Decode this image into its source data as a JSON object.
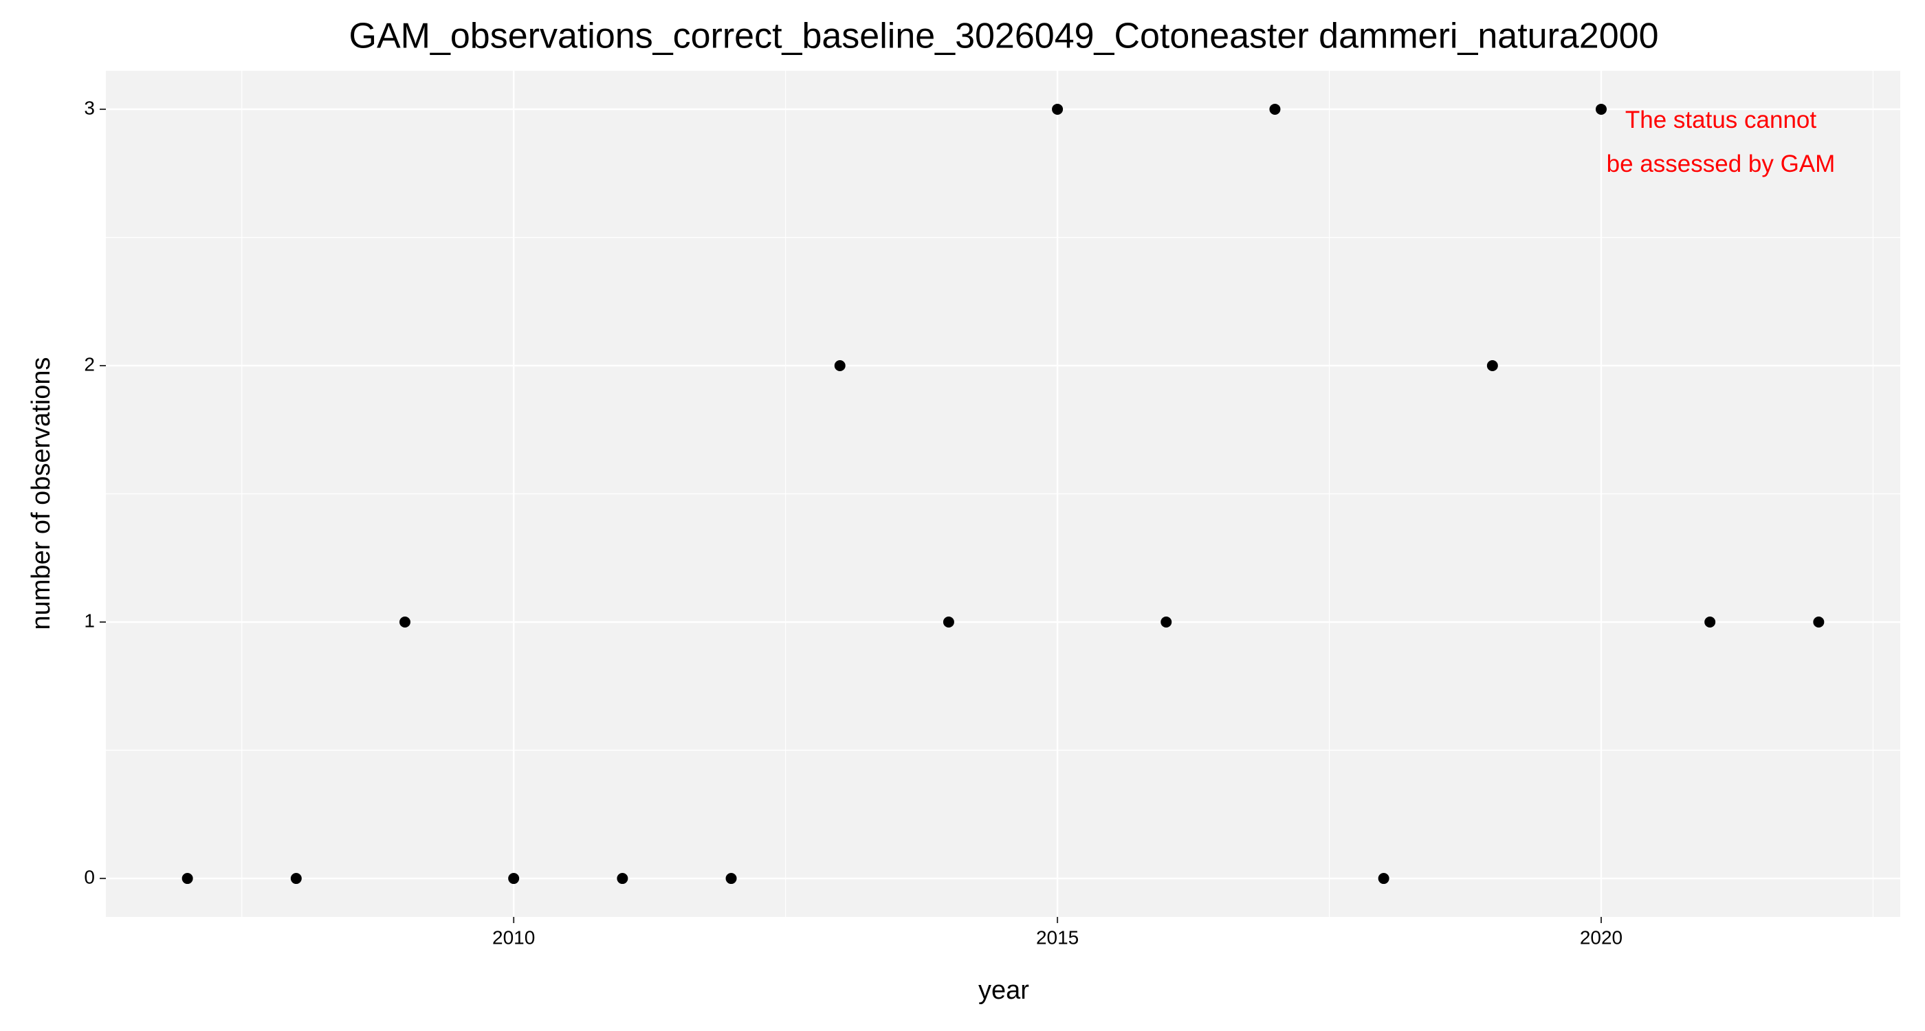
{
  "chart_data": {
    "type": "scatter",
    "title": "GAM_observations_correct_baseline_3026049_Cotoneaster dammeri_natura2000",
    "x_label": "year",
    "y_label": "number of observations",
    "x": [
      2007,
      2008,
      2009,
      2010,
      2011,
      2012,
      2013,
      2014,
      2015,
      2016,
      2017,
      2018,
      2019,
      2020,
      2021,
      2022
    ],
    "values": [
      0,
      0,
      1,
      0,
      0,
      0,
      2,
      1,
      3,
      1,
      3,
      0,
      2,
      3,
      1,
      1
    ],
    "color": "#000000",
    "xlim": [
      2006.25,
      2022.75
    ],
    "xticks": [
      2010,
      2015,
      2020
    ],
    "ylim": [
      -0.15,
      3.15
    ],
    "yticks": [
      0,
      1,
      2,
      3
    ],
    "grid": true,
    "annotation": {
      "lines": [
        "The status cannot",
        "be assessed by GAM"
      ],
      "color": "#ff0000"
    }
  }
}
